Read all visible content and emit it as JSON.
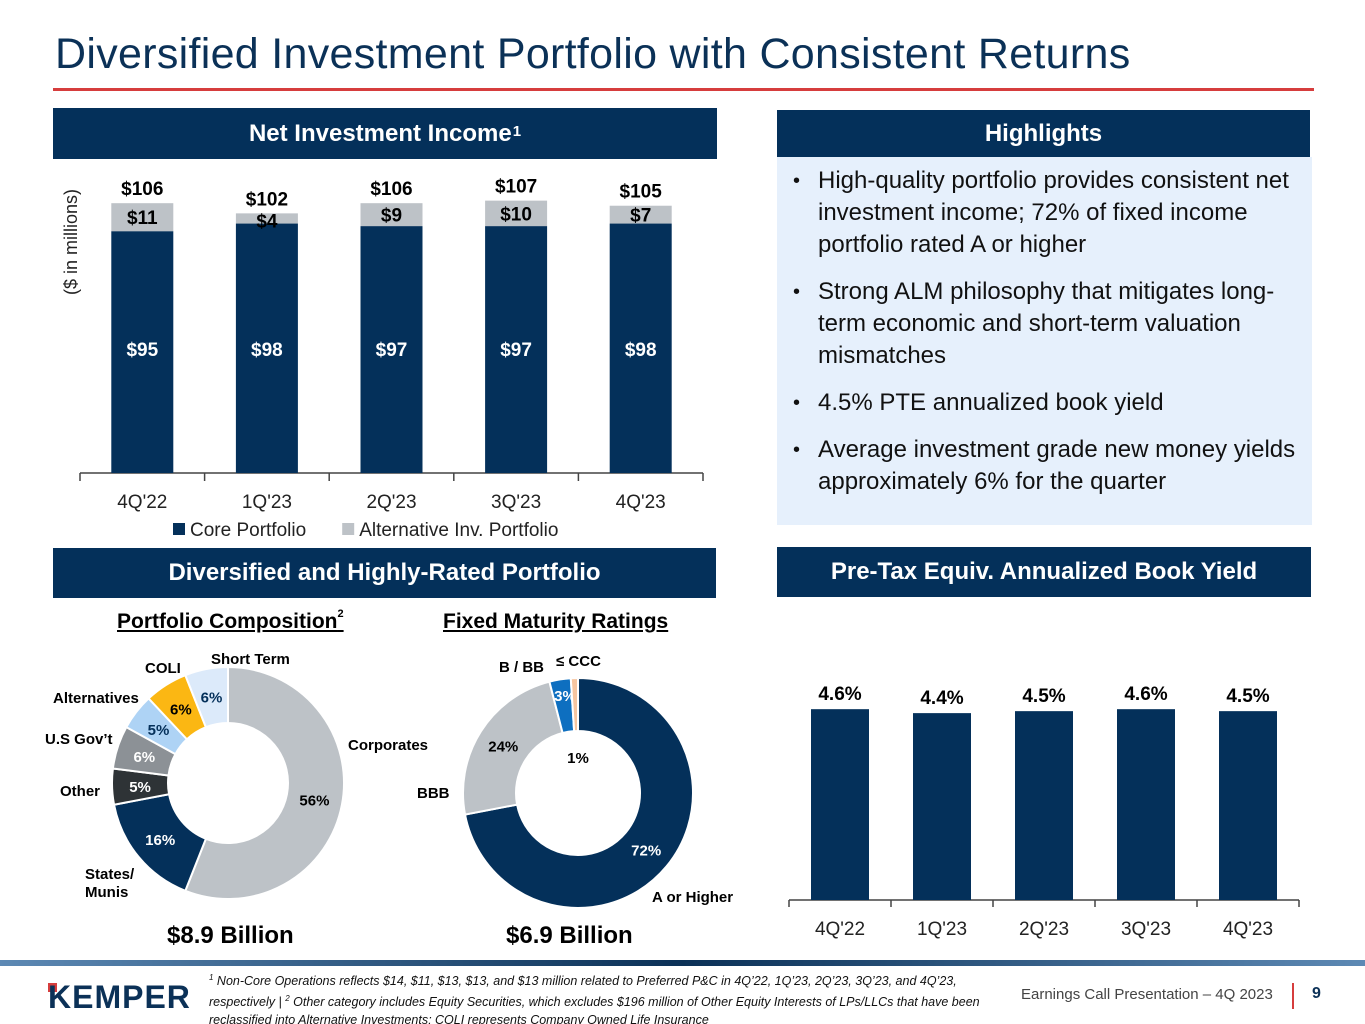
{
  "title": "Diversified Investment Portfolio with Consistent Returns",
  "sections": {
    "nii_header": "Net Investment Income",
    "nii_header_sup": "1",
    "highlights_header": "Highlights",
    "portfolio_header": "Diversified and Highly-Rated Portfolio",
    "yield_header": "Pre-Tax Equiv. Annualized Book Yield"
  },
  "highlights": [
    {
      "bullet": "•",
      "text": "High-quality portfolio provides consistent net investment income; 72% of fixed income portfolio rated A or higher"
    },
    {
      "bullet": "•",
      "text": "Strong ALM philosophy that mitigates long-term economic and short-term valuation mismatches"
    },
    {
      "bullet": "•",
      "text": "4.5% PTE annualized book yield"
    },
    {
      "bullet": "•",
      "text": "Average investment grade new money yields approximately 6% for the quarter"
    }
  ],
  "colors": {
    "navy": "#04305a",
    "light_gray": "#bdc2c7",
    "accent_red": "#d63d3d",
    "highlight_bg": "#e6f0fc"
  },
  "chart_data": [
    {
      "id": "nii",
      "type": "bar",
      "stacked": true,
      "title": "Net Investment Income",
      "ylabel": "($ in millions)",
      "xlabel": "",
      "categories": [
        "4Q'22",
        "1Q'23",
        "2Q'23",
        "3Q'23",
        "4Q'23"
      ],
      "series": [
        {
          "name": "Core Portfolio",
          "color": "#04305a",
          "values": [
            95,
            98,
            97,
            97,
            98
          ],
          "labels": [
            "$95",
            "$98",
            "$97",
            "$97",
            "$98"
          ]
        },
        {
          "name": "Alternative Inv. Portfolio",
          "color": "#bdc2c7",
          "values": [
            11,
            4,
            9,
            10,
            7
          ],
          "labels": [
            "$11",
            "$4",
            "$9",
            "$10",
            "$7"
          ]
        }
      ],
      "totals": [
        106,
        102,
        106,
        107,
        105
      ],
      "total_labels": [
        "$106",
        "$102",
        "$106",
        "$107",
        "$105"
      ],
      "ylim": [
        0,
        110
      ],
      "grid": false,
      "legend": "bottom"
    },
    {
      "id": "composition",
      "type": "pie",
      "donut": true,
      "title": "Portfolio Composition",
      "title_sup": "2",
      "total_label": "$8.9 Billion",
      "slices": [
        {
          "name": "Corporates",
          "value": 56,
          "label": "56%",
          "color": "#bdc2c7",
          "text_color": "#000000"
        },
        {
          "name": "States/ Munis",
          "value": 16,
          "label": "16%",
          "color": "#04305a",
          "text_color": "#ffffff"
        },
        {
          "name": "Other",
          "value": 5,
          "label": "5%",
          "color": "#2e3336",
          "text_color": "#ffffff"
        },
        {
          "name": "U.S Gov’t",
          "value": 6,
          "label": "6%",
          "color": "#8c9196",
          "text_color": "#ffffff"
        },
        {
          "name": "Alternatives",
          "value": 5,
          "label": "5%",
          "color": "#aed3f5",
          "text_color": "#04305a"
        },
        {
          "name": "COLI",
          "value": 6,
          "label": "6%",
          "color": "#fbb713",
          "text_color": "#000000"
        },
        {
          "name": "Short Term",
          "value": 6,
          "label": "6%",
          "color": "#dceafa",
          "text_color": "#04305a"
        }
      ]
    },
    {
      "id": "ratings",
      "type": "pie",
      "donut": true,
      "title": "Fixed Maturity Ratings",
      "total_label": "$6.9 Billion",
      "slices": [
        {
          "name": "A or Higher",
          "value": 72,
          "label": "72%",
          "color": "#04305a",
          "text_color": "#ffffff"
        },
        {
          "name": "BBB",
          "value": 24,
          "label": "24%",
          "color": "#bdc2c7",
          "text_color": "#000000"
        },
        {
          "name": "B / BB",
          "value": 3,
          "label": "3%",
          "color": "#0e6fc0",
          "text_color": "#ffffff"
        },
        {
          "name": "≤ CCC",
          "value": 1,
          "label": "1%",
          "color": "#f6c5a0",
          "text_color": "#000000"
        }
      ]
    },
    {
      "id": "yield",
      "type": "bar",
      "title": "Pre-Tax Equiv. Annualized Book Yield",
      "categories": [
        "4Q'22",
        "1Q'23",
        "2Q'23",
        "3Q'23",
        "4Q'23"
      ],
      "values": [
        4.6,
        4.4,
        4.5,
        4.6,
        4.5
      ],
      "labels": [
        "4.6%",
        "4.4%",
        "4.5%",
        "4.6%",
        "4.5%"
      ],
      "color": "#04305a",
      "xlabel": "",
      "ylabel": "",
      "ylim": [
        0,
        4.9
      ],
      "grid": false
    }
  ],
  "footer": {
    "logo_text": "KEMPER",
    "footnote_1_sup": "1",
    "footnote_1": " Non-Core Operations reflects $14, $11, $13, $13, and $13 million related to Preferred P&C in 4Q’22, 1Q’23, 2Q’23, 3Q’23, and 4Q’23, respectively | ",
    "footnote_2_sup": "2",
    "footnote_2": " Other category includes Equity Securities, which excludes $196 million of Other Equity Interests of LPs/LLCs that have been reclassified into Alternative Investments; COLI represents Company Owned Life Insurance",
    "presentation": "Earnings Call Presentation – 4Q 2023",
    "page": "9"
  }
}
